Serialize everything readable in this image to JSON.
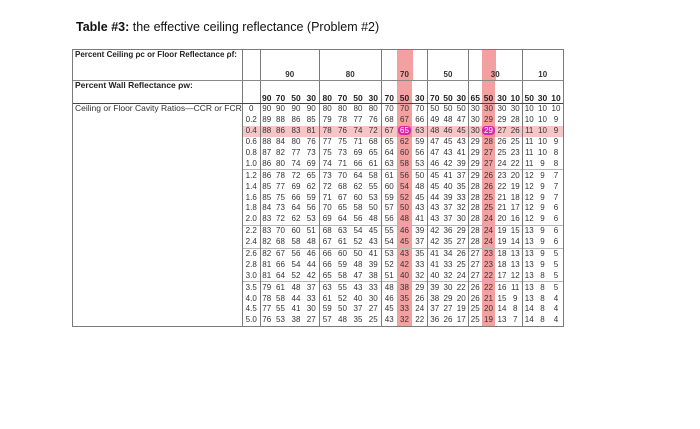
{
  "caption": {
    "prefix": "Table #3:",
    "text": " the effective ceiling reflectance (Problem #2)"
  },
  "table": {
    "header_ceiling_label": "Percent Ceiling ρc or Floor Reflectance ρf:",
    "ceiling_groups": [
      "90",
      "80",
      "70",
      "50",
      "30",
      "10"
    ],
    "header_wall_label": "Percent Wall Reflectance ρw:",
    "wall_values": [
      "90",
      "70",
      "50",
      "30",
      "80",
      "70",
      "50",
      "30",
      "70",
      "50",
      "30",
      "70",
      "50",
      "30",
      "65",
      "50",
      "30",
      "10",
      "50",
      "30",
      "10"
    ],
    "row_label": "Ceiling or Floor Cavity Ratios—CCR or FCR",
    "highlighted_row_ratio": "0.4",
    "rows": [
      [
        "0",
        "90",
        "90",
        "90",
        "90",
        "80",
        "80",
        "80",
        "80",
        "70",
        "70",
        "70",
        "50",
        "50",
        "50",
        "30",
        "30",
        "30",
        "30",
        "10",
        "10",
        "10"
      ],
      [
        "0.2",
        "89",
        "88",
        "86",
        "85",
        "79",
        "78",
        "77",
        "76",
        "68",
        "67",
        "66",
        "49",
        "48",
        "47",
        "30",
        "29",
        "29",
        "28",
        "10",
        "10",
        "9"
      ],
      [
        "0.4",
        "88",
        "86",
        "83",
        "81",
        "78",
        "76",
        "74",
        "72",
        "67",
        "65",
        "63",
        "48",
        "46",
        "45",
        "30",
        "29",
        "27",
        "26",
        "11",
        "10",
        "9"
      ],
      [
        "0.6",
        "88",
        "84",
        "80",
        "76",
        "77",
        "75",
        "71",
        "68",
        "65",
        "62",
        "59",
        "47",
        "45",
        "43",
        "29",
        "28",
        "26",
        "25",
        "11",
        "10",
        "9"
      ],
      [
        "0.8",
        "87",
        "82",
        "77",
        "73",
        "75",
        "73",
        "69",
        "65",
        "64",
        "60",
        "56",
        "47",
        "43",
        "41",
        "29",
        "27",
        "25",
        "23",
        "11",
        "10",
        "8"
      ],
      [
        "1.0",
        "86",
        "80",
        "74",
        "69",
        "74",
        "71",
        "66",
        "61",
        "63",
        "58",
        "53",
        "46",
        "42",
        "39",
        "29",
        "27",
        "24",
        "22",
        "11",
        "9",
        "8"
      ],
      [
        "1.2",
        "86",
        "78",
        "72",
        "65",
        "73",
        "70",
        "64",
        "58",
        "61",
        "56",
        "50",
        "45",
        "41",
        "37",
        "29",
        "26",
        "23",
        "20",
        "12",
        "9",
        "7"
      ],
      [
        "1.4",
        "85",
        "77",
        "69",
        "62",
        "72",
        "68",
        "62",
        "55",
        "60",
        "54",
        "48",
        "45",
        "40",
        "35",
        "28",
        "26",
        "22",
        "19",
        "12",
        "9",
        "7"
      ],
      [
        "1.6",
        "85",
        "75",
        "66",
        "59",
        "71",
        "67",
        "60",
        "53",
        "59",
        "52",
        "45",
        "44",
        "39",
        "33",
        "28",
        "25",
        "21",
        "18",
        "12",
        "9",
        "7"
      ],
      [
        "1.8",
        "84",
        "73",
        "64",
        "56",
        "70",
        "65",
        "58",
        "50",
        "57",
        "50",
        "43",
        "43",
        "37",
        "32",
        "28",
        "25",
        "21",
        "17",
        "12",
        "9",
        "6"
      ],
      [
        "2.0",
        "83",
        "72",
        "62",
        "53",
        "69",
        "64",
        "56",
        "48",
        "56",
        "48",
        "41",
        "43",
        "37",
        "30",
        "28",
        "24",
        "20",
        "16",
        "12",
        "9",
        "6"
      ],
      [
        "2.2",
        "83",
        "70",
        "60",
        "51",
        "68",
        "63",
        "54",
        "45",
        "55",
        "46",
        "39",
        "42",
        "36",
        "29",
        "28",
        "24",
        "19",
        "15",
        "13",
        "9",
        "6"
      ],
      [
        "2.4",
        "82",
        "68",
        "58",
        "48",
        "67",
        "61",
        "52",
        "43",
        "54",
        "45",
        "37",
        "42",
        "35",
        "27",
        "28",
        "24",
        "19",
        "14",
        "13",
        "9",
        "6"
      ],
      [
        "2.6",
        "82",
        "67",
        "56",
        "46",
        "66",
        "60",
        "50",
        "41",
        "53",
        "43",
        "35",
        "41",
        "34",
        "26",
        "27",
        "23",
        "18",
        "13",
        "13",
        "9",
        "5"
      ],
      [
        "2.8",
        "81",
        "66",
        "54",
        "44",
        "66",
        "59",
        "48",
        "39",
        "52",
        "42",
        "33",
        "41",
        "33",
        "25",
        "27",
        "23",
        "18",
        "13",
        "13",
        "9",
        "5"
      ],
      [
        "3.0",
        "81",
        "64",
        "52",
        "42",
        "65",
        "58",
        "47",
        "38",
        "51",
        "40",
        "32",
        "40",
        "32",
        "24",
        "27",
        "22",
        "17",
        "12",
        "13",
        "8",
        "5"
      ],
      [
        "3.5",
        "79",
        "61",
        "48",
        "37",
        "63",
        "55",
        "43",
        "33",
        "48",
        "38",
        "29",
        "39",
        "30",
        "22",
        "26",
        "22",
        "16",
        "11",
        "13",
        "8",
        "5"
      ],
      [
        "4.0",
        "78",
        "58",
        "44",
        "33",
        "61",
        "52",
        "40",
        "30",
        "46",
        "35",
        "26",
        "38",
        "29",
        "20",
        "26",
        "21",
        "15",
        "9",
        "13",
        "8",
        "4"
      ],
      [
        "4.5",
        "77",
        "55",
        "41",
        "30",
        "59",
        "50",
        "37",
        "27",
        "45",
        "33",
        "24",
        "37",
        "27",
        "19",
        "25",
        "20",
        "14",
        "8",
        "14",
        "8",
        "4"
      ],
      [
        "5.0",
        "76",
        "53",
        "38",
        "27",
        "57",
        "48",
        "35",
        "25",
        "43",
        "32",
        "22",
        "36",
        "26",
        "17",
        "25",
        "19",
        "13",
        "7",
        "14",
        "8",
        "4"
      ]
    ]
  }
}
